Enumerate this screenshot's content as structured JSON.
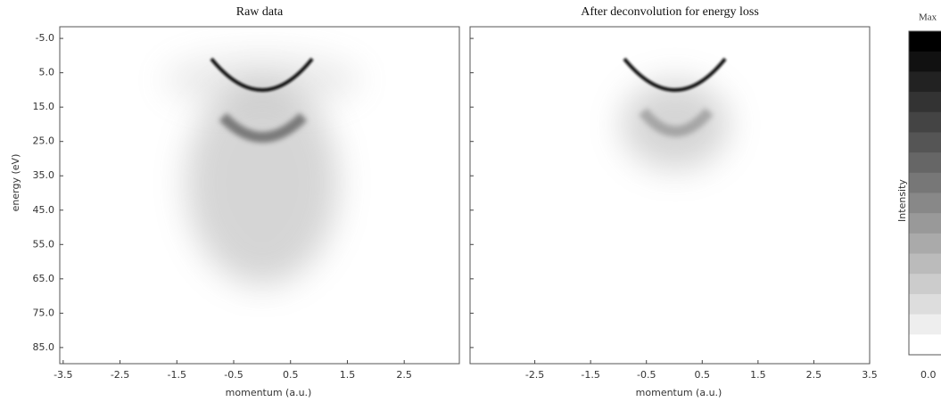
{
  "chart_data": [
    {
      "type": "heatmap",
      "title": "Raw data",
      "xlabel": "momentum  (a.u.)",
      "ylabel": "energy (eV)",
      "xlim": [
        -3.56,
        3.47
      ],
      "xticks": [
        -3.5,
        -2.5,
        -1.5,
        -0.5,
        0.5,
        1.5,
        2.5
      ],
      "ylim": [
        -8.4,
        89.7
      ],
      "y_inverted": true,
      "yticks": [
        {
          "value": -5,
          "label": "-5.0"
        },
        {
          "value": 5,
          "label": "5.0"
        },
        {
          "value": 15,
          "label": "15.0"
        },
        {
          "value": 25,
          "label": "25.0"
        },
        {
          "value": 35,
          "label": "35.0"
        },
        {
          "value": 45,
          "label": "45.0"
        },
        {
          "value": 55,
          "label": "55.0"
        },
        {
          "value": 65,
          "label": "65.0"
        },
        {
          "value": 75,
          "label": "75.0"
        },
        {
          "value": 85,
          "label": "85.0"
        }
      ]
    },
    {
      "type": "heatmap",
      "title": "After deconvolution for energy loss",
      "xlabel": "momentum  (a.u.)",
      "xlim": [
        -3.66,
        3.5
      ],
      "xticks": [
        -2.5,
        -1.5,
        -0.5,
        0.5,
        1.5,
        2.5,
        3.5
      ],
      "ylim": [
        -8.4,
        89.7
      ],
      "y_inverted": true,
      "yticks": [
        -5,
        5,
        15,
        25,
        35,
        45,
        55,
        65,
        75,
        85
      ]
    }
  ],
  "colorbar": {
    "label": "Intensity",
    "max_label": "Max",
    "min_label": "0.0"
  }
}
